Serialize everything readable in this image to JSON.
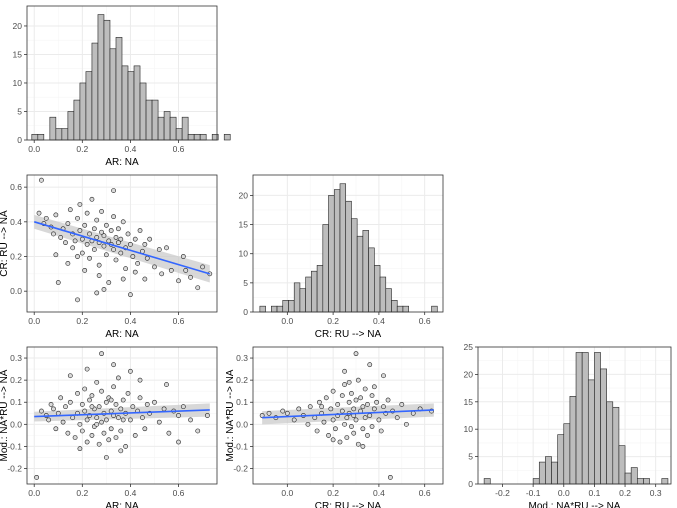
{
  "figure": {
    "description_free": true
  },
  "colors": {
    "panel_border": "#333333",
    "grid_major": "#ebebeb",
    "grid_minor": "#f5f5f5",
    "bar_fill": "#bdbdbd",
    "bar_stroke": "#222222",
    "point_fill": "#d9d9d9",
    "point_stroke": "#222222",
    "trend": "#3366ff",
    "band": "#c8c8c8"
  },
  "chart_data": [
    {
      "id": "hist-ar",
      "type": "bar",
      "subtype": "histogram",
      "xlabel": "AR: NA",
      "ylabel": "",
      "xlim": [
        -0.03,
        0.76
      ],
      "ylim": [
        0,
        23.5
      ],
      "xticks": [
        0.0,
        0.2,
        0.4,
        0.6
      ],
      "xtick_labels": [
        "0.0",
        "0.2",
        "0.4",
        "0.6"
      ],
      "yticks": [
        0,
        5,
        10,
        15,
        20
      ],
      "ytick_labels": [
        "0",
        "5",
        "10",
        "15",
        "20"
      ],
      "bin_start": -0.01,
      "bin_width": 0.025,
      "values": [
        1,
        1,
        0,
        4,
        2,
        2,
        5,
        7,
        10,
        12,
        17,
        22,
        21,
        16,
        18,
        13,
        12,
        13,
        10,
        7,
        7,
        4,
        5,
        4,
        2,
        4,
        1,
        1,
        1,
        0,
        1,
        0,
        1
      ]
    },
    {
      "id": "scatter-ar-cr",
      "type": "scatter",
      "xlabel": "AR: NA",
      "ylabel": "CR: RU --> NA",
      "xlim": [
        -0.03,
        0.76
      ],
      "ylim": [
        -0.12,
        0.67
      ],
      "xticks": [
        0.0,
        0.2,
        0.4,
        0.6
      ],
      "xtick_labels": [
        "0.0",
        "0.2",
        "0.4",
        "0.6"
      ],
      "yticks": [
        0.0,
        0.2,
        0.4,
        0.6
      ],
      "ytick_labels": [
        "0.0",
        "0.2",
        "0.4",
        "0.6"
      ],
      "trend": {
        "x": [
          0.0,
          0.73
        ],
        "y": [
          0.4,
          0.1
        ],
        "se": [
          0.04,
          0.05
        ]
      },
      "points": [
        [
          0.02,
          0.45
        ],
        [
          0.03,
          0.64
        ],
        [
          0.04,
          0.39
        ],
        [
          0.05,
          0.42
        ],
        [
          0.07,
          0.37
        ],
        [
          0.08,
          0.33
        ],
        [
          0.09,
          0.44
        ],
        [
          0.11,
          0.31
        ],
        [
          0.12,
          0.36
        ],
        [
          0.13,
          0.28
        ],
        [
          0.14,
          0.39
        ],
        [
          0.14,
          0.16
        ],
        [
          0.15,
          0.47
        ],
        [
          0.16,
          0.33
        ],
        [
          0.16,
          0.25
        ],
        [
          0.17,
          0.29
        ],
        [
          0.18,
          0.42
        ],
        [
          0.18,
          0.2
        ],
        [
          0.19,
          0.35
        ],
        [
          0.19,
          0.5
        ],
        [
          0.2,
          0.3
        ],
        [
          0.2,
          0.22
        ],
        [
          0.21,
          0.38
        ],
        [
          0.21,
          0.12
        ],
        [
          0.22,
          0.27
        ],
        [
          0.22,
          0.45
        ],
        [
          0.23,
          0.33
        ],
        [
          0.23,
          0.19
        ],
        [
          0.24,
          0.29
        ],
        [
          0.24,
          0.53
        ],
        [
          0.25,
          0.36
        ],
        [
          0.25,
          0.24
        ],
        [
          0.26,
          0.31
        ],
        [
          0.26,
          0.41
        ],
        [
          0.27,
          0.28
        ],
        [
          0.27,
          0.15
        ],
        [
          0.28,
          0.34
        ],
        [
          0.28,
          0.46
        ],
        [
          0.29,
          0.26
        ],
        [
          0.29,
          0.32
        ],
        [
          0.3,
          0.38
        ],
        [
          0.3,
          0.21
        ],
        [
          0.31,
          0.29
        ],
        [
          0.31,
          0.05
        ],
        [
          0.32,
          0.35
        ],
        [
          0.32,
          0.27
        ],
        [
          0.33,
          0.24
        ],
        [
          0.33,
          0.43
        ],
        [
          0.34,
          0.31
        ],
        [
          0.34,
          0.18
        ],
        [
          0.35,
          0.28
        ],
        [
          0.35,
          0.36
        ],
        [
          0.36,
          0.22
        ],
        [
          0.36,
          0.3
        ],
        [
          0.37,
          0.4
        ],
        [
          0.38,
          0.25
        ],
        [
          0.38,
          0.13
        ],
        [
          0.39,
          0.33
        ],
        [
          0.4,
          0.27
        ],
        [
          0.4,
          -0.02
        ],
        [
          0.41,
          0.2
        ],
        [
          0.42,
          0.3
        ],
        [
          0.43,
          0.16
        ],
        [
          0.44,
          0.35
        ],
        [
          0.45,
          0.23
        ],
        [
          0.46,
          0.27
        ],
        [
          0.47,
          0.19
        ],
        [
          0.48,
          0.3
        ],
        [
          0.5,
          0.14
        ],
        [
          0.52,
          0.24
        ],
        [
          0.53,
          0.1
        ],
        [
          0.55,
          0.25
        ],
        [
          0.57,
          0.12
        ],
        [
          0.6,
          0.06
        ],
        [
          0.62,
          0.2
        ],
        [
          0.63,
          0.12
        ],
        [
          0.65,
          0.08
        ],
        [
          0.68,
          0.02
        ],
        [
          0.7,
          0.14
        ],
        [
          0.73,
          0.1
        ],
        [
          0.09,
          0.21
        ],
        [
          0.1,
          0.05
        ],
        [
          0.18,
          -0.05
        ],
        [
          0.26,
          -0.01
        ],
        [
          0.33,
          0.58
        ],
        [
          0.29,
          0.01
        ],
        [
          0.37,
          0.07
        ],
        [
          0.42,
          0.11
        ],
        [
          0.46,
          0.07
        ],
        [
          0.27,
          0.09
        ]
      ]
    },
    {
      "id": "hist-cr",
      "type": "bar",
      "subtype": "histogram",
      "xlabel": "CR: RU --> NA",
      "ylabel": "",
      "xlim": [
        -0.15,
        0.68
      ],
      "ylim": [
        0,
        23.5
      ],
      "xticks": [
        0.0,
        0.2,
        0.4,
        0.6
      ],
      "xtick_labels": [
        "0.0",
        "0.2",
        "0.4",
        "0.6"
      ],
      "yticks": [
        0,
        5,
        10,
        15,
        20
      ],
      "ytick_labels": [
        "0",
        "5",
        "10",
        "15",
        "20"
      ],
      "bin_start": -0.12,
      "bin_width": 0.025,
      "values": [
        1,
        0,
        1,
        1,
        2,
        2,
        5,
        4,
        6,
        7,
        8,
        15,
        20,
        21,
        22,
        19,
        16,
        13,
        14,
        11,
        8,
        6,
        4,
        2,
        1,
        1,
        0,
        0,
        0,
        0,
        1
      ]
    },
    {
      "id": "scatter-ar-mod",
      "type": "scatter",
      "xlabel": "AR: NA",
      "ylabel": "Mod.: NA*RU --> NA",
      "xlim": [
        -0.03,
        0.76
      ],
      "ylim": [
        -0.27,
        0.35
      ],
      "xticks": [
        0.0,
        0.2,
        0.4,
        0.6
      ],
      "xtick_labels": [
        "0.0",
        "0.2",
        "0.4",
        "0.6"
      ],
      "yticks": [
        -0.2,
        -0.1,
        0.0,
        0.1,
        0.2,
        0.3
      ],
      "ytick_labels": [
        "-0.2",
        "-0.1",
        "0.0",
        "0.1",
        "0.2",
        "0.3"
      ],
      "trend": {
        "x": [
          0.0,
          0.73
        ],
        "y": [
          0.035,
          0.065
        ],
        "se": [
          0.022,
          0.03
        ]
      },
      "points": [
        [
          0.01,
          -0.24
        ],
        [
          0.03,
          0.06
        ],
        [
          0.05,
          0.04
        ],
        [
          0.06,
          0.02
        ],
        [
          0.08,
          0.07
        ],
        [
          0.09,
          -0.02
        ],
        [
          0.1,
          0.05
        ],
        [
          0.11,
          0.12
        ],
        [
          0.12,
          0.01
        ],
        [
          0.13,
          0.08
        ],
        [
          0.14,
          -0.04
        ],
        [
          0.15,
          0.1
        ],
        [
          0.16,
          0.03
        ],
        [
          0.17,
          -0.06
        ],
        [
          0.18,
          0.14
        ],
        [
          0.18,
          0.05
        ],
        [
          0.19,
          0.0
        ],
        [
          0.2,
          0.09
        ],
        [
          0.2,
          -0.03
        ],
        [
          0.21,
          0.16
        ],
        [
          0.21,
          0.06
        ],
        [
          0.22,
          -0.08
        ],
        [
          0.22,
          0.02
        ],
        [
          0.23,
          0.11
        ],
        [
          0.23,
          0.04
        ],
        [
          0.24,
          -0.05
        ],
        [
          0.24,
          0.13
        ],
        [
          0.25,
          0.07
        ],
        [
          0.25,
          -0.01
        ],
        [
          0.26,
          0.19
        ],
        [
          0.26,
          0.03
        ],
        [
          0.27,
          -0.09
        ],
        [
          0.27,
          0.08
        ],
        [
          0.28,
          0.01
        ],
        [
          0.28,
          0.15
        ],
        [
          0.29,
          0.05
        ],
        [
          0.29,
          -0.04
        ],
        [
          0.3,
          0.1
        ],
        [
          0.3,
          0.02
        ],
        [
          0.31,
          -0.07
        ],
        [
          0.31,
          0.12
        ],
        [
          0.32,
          0.06
        ],
        [
          0.32,
          -0.02
        ],
        [
          0.33,
          0.17
        ],
        [
          0.33,
          0.04
        ],
        [
          0.34,
          0.09
        ],
        [
          0.34,
          -0.06
        ],
        [
          0.35,
          0.03
        ],
        [
          0.35,
          0.21
        ],
        [
          0.36,
          0.07
        ],
        [
          0.36,
          -0.03
        ],
        [
          0.37,
          0.11
        ],
        [
          0.38,
          0.05
        ],
        [
          0.38,
          -0.1
        ],
        [
          0.39,
          0.14
        ],
        [
          0.4,
          0.02
        ],
        [
          0.41,
          0.08
        ],
        [
          0.42,
          -0.05
        ],
        [
          0.43,
          0.06
        ],
        [
          0.44,
          0.12
        ],
        [
          0.45,
          0.03
        ],
        [
          0.46,
          -0.02
        ],
        [
          0.47,
          0.09
        ],
        [
          0.48,
          0.05
        ],
        [
          0.5,
          0.1
        ],
        [
          0.52,
          0.01
        ],
        [
          0.54,
          0.07
        ],
        [
          0.56,
          -0.04
        ],
        [
          0.58,
          0.06
        ],
        [
          0.6,
          0.04
        ],
        [
          0.62,
          0.08
        ],
        [
          0.65,
          0.02
        ],
        [
          0.68,
          -0.03
        ],
        [
          0.72,
          0.04
        ],
        [
          0.28,
          0.32
        ],
        [
          0.33,
          0.27
        ],
        [
          0.22,
          0.25
        ],
        [
          0.4,
          0.24
        ],
        [
          0.3,
          -0.15
        ],
        [
          0.36,
          -0.12
        ],
        [
          0.19,
          -0.11
        ],
        [
          0.55,
          0.18
        ],
        [
          0.44,
          0.2
        ],
        [
          0.15,
          0.22
        ],
        [
          0.6,
          -0.08
        ],
        [
          0.07,
          0.09
        ],
        [
          0.26,
          0.0
        ],
        [
          0.32,
          0.11
        ],
        [
          0.24,
          0.08
        ],
        [
          0.37,
          0.02
        ]
      ]
    },
    {
      "id": "scatter-cr-mod",
      "type": "scatter",
      "xlabel": "CR: RU --> NA",
      "ylabel": "Mod.: NA*RU --> NA",
      "xlim": [
        -0.15,
        0.68
      ],
      "ylim": [
        -0.27,
        0.35
      ],
      "xticks": [
        0.0,
        0.2,
        0.4,
        0.6
      ],
      "xtick_labels": [
        "0.0",
        "0.2",
        "0.4",
        "0.6"
      ],
      "yticks": [
        -0.2,
        -0.1,
        0.0,
        0.1,
        0.2,
        0.3
      ],
      "ytick_labels": [
        "-0.2",
        "-0.1",
        "0.0",
        "0.1",
        "0.2",
        "0.3"
      ],
      "trend": {
        "x": [
          -0.11,
          0.64
        ],
        "y": [
          0.03,
          0.065
        ],
        "se": [
          0.03,
          0.03
        ]
      },
      "points": [
        [
          -0.11,
          0.04
        ],
        [
          -0.08,
          0.05
        ],
        [
          -0.05,
          0.03
        ],
        [
          -0.02,
          0.06
        ],
        [
          0.0,
          0.05
        ],
        [
          0.03,
          0.02
        ],
        [
          0.05,
          0.07
        ],
        [
          0.07,
          0.04
        ],
        [
          0.09,
          0.0
        ],
        [
          0.1,
          0.08
        ],
        [
          0.12,
          0.03
        ],
        [
          0.13,
          -0.03
        ],
        [
          0.14,
          0.1
        ],
        [
          0.15,
          0.05
        ],
        [
          0.16,
          0.01
        ],
        [
          0.17,
          0.12
        ],
        [
          0.18,
          -0.05
        ],
        [
          0.19,
          0.07
        ],
        [
          0.2,
          0.02
        ],
        [
          0.2,
          0.15
        ],
        [
          0.21,
          -0.02
        ],
        [
          0.22,
          0.09
        ],
        [
          0.22,
          0.04
        ],
        [
          0.23,
          -0.08
        ],
        [
          0.24,
          0.13
        ],
        [
          0.24,
          0.06
        ],
        [
          0.25,
          0.0
        ],
        [
          0.25,
          0.18
        ],
        [
          0.26,
          0.03
        ],
        [
          0.26,
          -0.06
        ],
        [
          0.27,
          0.1
        ],
        [
          0.27,
          0.05
        ],
        [
          0.28,
          -0.01
        ],
        [
          0.28,
          0.14
        ],
        [
          0.29,
          0.07
        ],
        [
          0.29,
          -0.04
        ],
        [
          0.3,
          0.11
        ],
        [
          0.3,
          0.02
        ],
        [
          0.31,
          0.2
        ],
        [
          0.31,
          -0.09
        ],
        [
          0.32,
          0.06
        ],
        [
          0.32,
          0.12
        ],
        [
          0.33,
          -0.02
        ],
        [
          0.33,
          0.08
        ],
        [
          0.34,
          0.03
        ],
        [
          0.34,
          0.16
        ],
        [
          0.35,
          -0.05
        ],
        [
          0.35,
          0.09
        ],
        [
          0.36,
          0.04
        ],
        [
          0.37,
          0.13
        ],
        [
          0.37,
          -0.01
        ],
        [
          0.38,
          0.07
        ],
        [
          0.39,
          0.1
        ],
        [
          0.4,
          0.02
        ],
        [
          0.41,
          -0.03
        ],
        [
          0.42,
          0.08
        ],
        [
          0.43,
          0.05
        ],
        [
          0.44,
          0.11
        ],
        [
          0.45,
          -0.24
        ],
        [
          0.46,
          0.06
        ],
        [
          0.48,
          0.03
        ],
        [
          0.5,
          0.09
        ],
        [
          0.52,
          0.0
        ],
        [
          0.55,
          0.05
        ],
        [
          0.58,
          0.07
        ],
        [
          0.63,
          0.06
        ],
        [
          0.3,
          0.32
        ],
        [
          0.36,
          0.27
        ],
        [
          0.25,
          0.24
        ],
        [
          0.42,
          0.22
        ],
        [
          0.2,
          -0.07
        ],
        [
          0.33,
          -0.1
        ],
        [
          0.27,
          0.19
        ],
        [
          0.38,
          0.17
        ],
        [
          0.15,
          0.08
        ],
        [
          0.29,
          0.04
        ]
      ]
    },
    {
      "id": "hist-mod",
      "type": "bar",
      "subtype": "histogram",
      "xlabel": "Mod.: NA*RU --> NA",
      "ylabel": "",
      "xlim": [
        -0.28,
        0.35
      ],
      "ylim": [
        0,
        25
      ],
      "xticks": [
        -0.2,
        -0.1,
        0.0,
        0.1,
        0.2,
        0.3
      ],
      "xtick_labels": [
        "-0.2",
        "-0.1",
        "0.0",
        "0.1",
        "0.2",
        "0.3"
      ],
      "yticks": [
        0,
        5,
        10,
        15,
        20,
        25
      ],
      "ytick_labels": [
        "0",
        "5",
        "10",
        "15",
        "20",
        "25"
      ],
      "bin_start": -0.26,
      "bin_width": 0.02,
      "values": [
        1,
        0,
        0,
        0,
        0,
        0,
        0,
        0,
        1,
        4,
        5,
        4,
        9,
        11,
        16,
        24,
        24,
        19,
        24,
        21,
        15,
        14,
        7,
        2,
        3,
        1,
        1,
        0,
        0,
        1
      ]
    }
  ]
}
